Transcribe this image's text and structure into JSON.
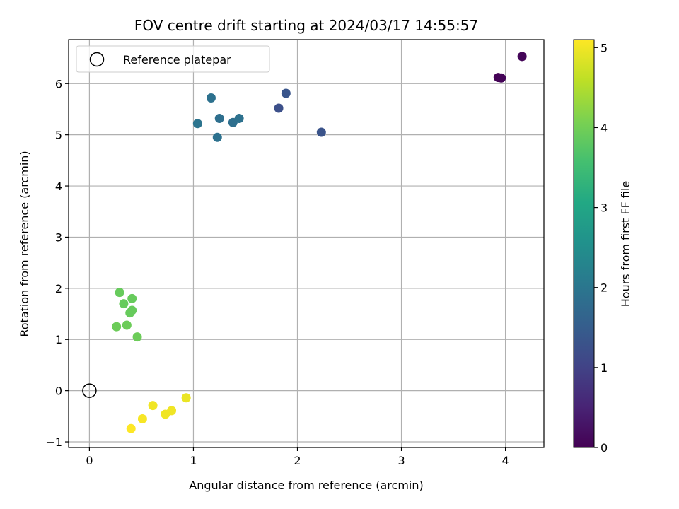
{
  "chart_data": {
    "type": "scatter",
    "title": "FOV centre drift starting at 2024/03/17 14:55:57",
    "xlabel": "Angular distance from reference (arcmin)",
    "ylabel": "Rotation from reference (arcmin)",
    "xlim": [
      -0.2,
      4.37
    ],
    "ylim": [
      -1.11,
      6.86
    ],
    "xticks": [
      0,
      1,
      2,
      3,
      4
    ],
    "yticks": [
      -1,
      0,
      1,
      2,
      3,
      4,
      5,
      6
    ],
    "grid": true,
    "legend": {
      "placement": "top-left",
      "entries": [
        "Reference platepar"
      ]
    },
    "reference": {
      "x": 0,
      "y": 0,
      "label": "Reference platepar"
    },
    "colorbar": {
      "label": "Hours from first FF file",
      "colormap": "viridis",
      "range": [
        0,
        5.1
      ],
      "ticks": [
        0,
        1,
        2,
        3,
        4,
        5
      ]
    },
    "points": [
      {
        "x": 3.93,
        "y": 6.12,
        "hours": 0.02
      },
      {
        "x": 3.96,
        "y": 6.11,
        "hours": 0.04
      },
      {
        "x": 4.16,
        "y": 6.53,
        "hours": 0.06
      },
      {
        "x": 1.82,
        "y": 5.52,
        "hours": 1.25
      },
      {
        "x": 1.89,
        "y": 5.81,
        "hours": 1.35
      },
      {
        "x": 2.23,
        "y": 5.05,
        "hours": 1.3
      },
      {
        "x": 1.04,
        "y": 5.22,
        "hours": 1.95
      },
      {
        "x": 1.17,
        "y": 5.72,
        "hours": 1.9
      },
      {
        "x": 1.25,
        "y": 5.32,
        "hours": 1.85
      },
      {
        "x": 1.23,
        "y": 4.95,
        "hours": 1.9
      },
      {
        "x": 1.38,
        "y": 5.24,
        "hours": 1.85
      },
      {
        "x": 1.44,
        "y": 5.32,
        "hours": 1.9
      },
      {
        "x": 0.29,
        "y": 1.92,
        "hours": 3.9
      },
      {
        "x": 0.33,
        "y": 1.7,
        "hours": 3.9
      },
      {
        "x": 0.41,
        "y": 1.8,
        "hours": 3.9
      },
      {
        "x": 0.41,
        "y": 1.57,
        "hours": 3.9
      },
      {
        "x": 0.39,
        "y": 1.52,
        "hours": 3.9
      },
      {
        "x": 0.26,
        "y": 1.25,
        "hours": 3.95
      },
      {
        "x": 0.36,
        "y": 1.28,
        "hours": 3.95
      },
      {
        "x": 0.46,
        "y": 1.05,
        "hours": 3.95
      },
      {
        "x": 0.93,
        "y": -0.14,
        "hours": 4.95
      },
      {
        "x": 0.61,
        "y": -0.29,
        "hours": 5.0
      },
      {
        "x": 0.79,
        "y": -0.39,
        "hours": 5.0
      },
      {
        "x": 0.73,
        "y": -0.46,
        "hours": 5.0
      },
      {
        "x": 0.51,
        "y": -0.55,
        "hours": 5.05
      },
      {
        "x": 0.4,
        "y": -0.74,
        "hours": 5.1
      }
    ]
  }
}
